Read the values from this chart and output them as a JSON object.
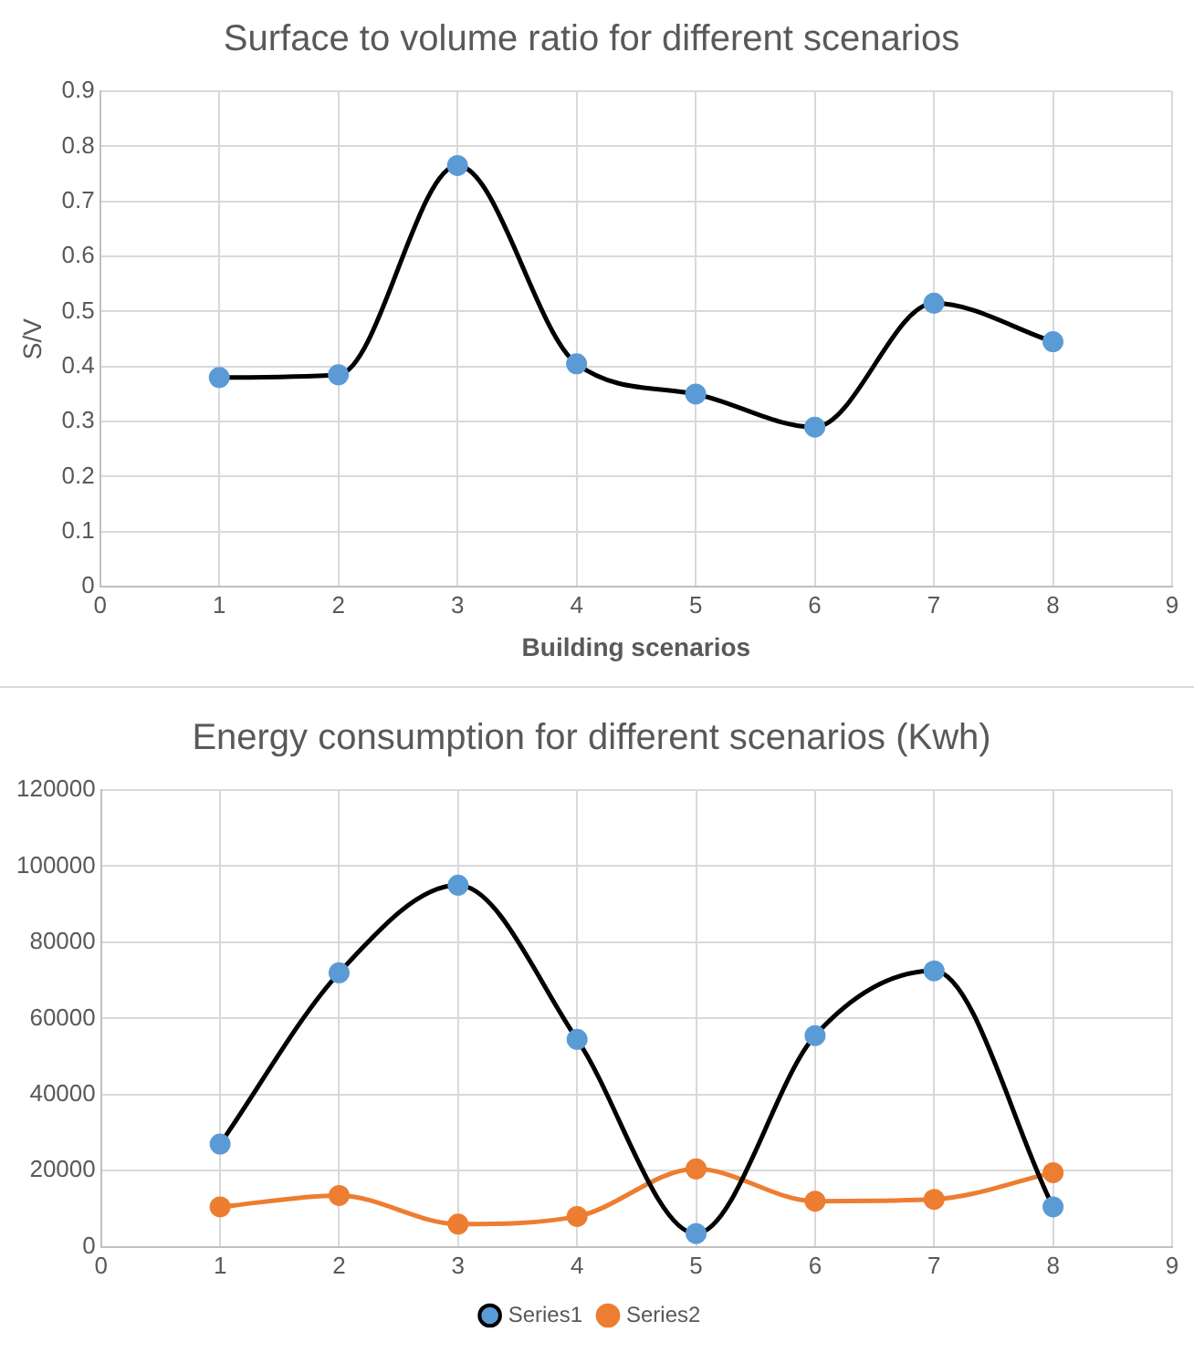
{
  "chart_data": [
    {
      "type": "line",
      "title": "Surface to volume ratio for different scenarios",
      "xlabel": "Building scenarios",
      "ylabel": "S/V",
      "x": [
        1,
        2,
        3,
        4,
        5,
        6,
        7,
        8
      ],
      "xlim": [
        0,
        9
      ],
      "xticks": [
        0,
        1,
        2,
        3,
        4,
        5,
        6,
        7,
        8,
        9
      ],
      "ylim": [
        0,
        0.9
      ],
      "yticks": [
        0,
        0.1,
        0.2,
        0.3,
        0.4,
        0.5,
        0.6,
        0.7,
        0.8,
        0.9
      ],
      "grid": true,
      "legend": false,
      "marker": "circle",
      "series": [
        {
          "color": "#000000",
          "colors": [
            "#5b9bd5",
            "#5b9bd5",
            "#5b9bd5",
            "#5b9bd5",
            "#5b9bd5",
            "#5b9bd5",
            "#5b9bd5",
            "#5b9bd5"
          ],
          "values": [
            0.38,
            0.385,
            0.765,
            0.405,
            0.35,
            0.29,
            0.515,
            0.445
          ]
        }
      ]
    },
    {
      "type": "line",
      "title": "Energy consumption for different scenarios (Kwh)",
      "x": [
        1,
        2,
        3,
        4,
        5,
        6,
        7,
        8
      ],
      "xlim": [
        0,
        9
      ],
      "xticks": [
        0,
        1,
        2,
        3,
        4,
        5,
        6,
        7,
        8,
        9
      ],
      "ylim": [
        0,
        120000
      ],
      "yticks": [
        0,
        20000,
        40000,
        60000,
        80000,
        100000,
        120000
      ],
      "grid": true,
      "legend": "bottom",
      "marker": "circle",
      "series": [
        {
          "name": "Series1",
          "color": "#000000",
          "colors": [
            "#5b9bd5",
            "#5b9bd5",
            "#5b9bd5",
            "#5b9bd5",
            "#5b9bd5",
            "#5b9bd5",
            "#5b9bd5",
            "#5b9bd5"
          ],
          "values": [
            27000,
            72000,
            95000,
            54500,
            3500,
            55500,
            72500,
            10500
          ]
        },
        {
          "name": "Series2",
          "color": "#ed7d31",
          "colors": [
            "#ed7d31",
            "#ed7d31",
            "#ed7d31",
            "#ed7d31",
            "#ed7d31",
            "#ed7d31",
            "#ed7d31",
            "#ed7d31"
          ],
          "values": [
            10500,
            13500,
            6000,
            8000,
            20500,
            12000,
            12500,
            19500
          ]
        }
      ]
    }
  ]
}
